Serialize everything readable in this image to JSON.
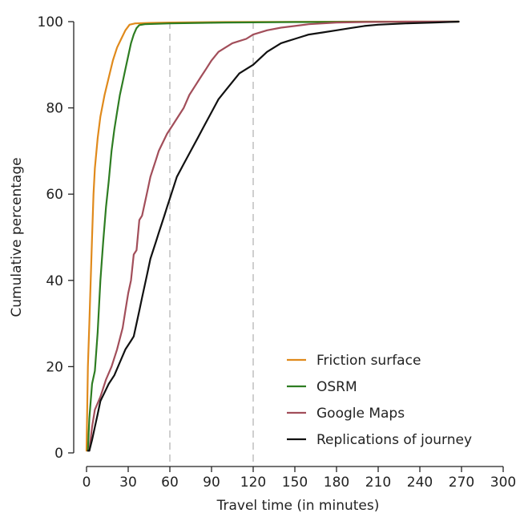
{
  "chart_data": {
    "type": "line",
    "xlabel": "Travel time (in minutes)",
    "ylabel": "Cumulative percentage",
    "xlim": [
      0,
      300
    ],
    "ylim": [
      0,
      100
    ],
    "xticks": [
      0,
      30,
      60,
      90,
      120,
      150,
      180,
      210,
      240,
      270,
      300
    ],
    "yticks": [
      0,
      20,
      40,
      60,
      80,
      100
    ],
    "reference_lines_x": [
      60,
      120
    ],
    "grid": false,
    "legend_position": "bottom-right",
    "series": [
      {
        "name": "Friction surface",
        "color": "#E08A1C",
        "points": [
          [
            0,
            0.5
          ],
          [
            1,
            20
          ],
          [
            2,
            30
          ],
          [
            3,
            40
          ],
          [
            4,
            50
          ],
          [
            5,
            60
          ],
          [
            6,
            66
          ],
          [
            8,
            73
          ],
          [
            10,
            78
          ],
          [
            13,
            83
          ],
          [
            16,
            87
          ],
          [
            19,
            91
          ],
          [
            22,
            94
          ],
          [
            25,
            96
          ],
          [
            28,
            98
          ],
          [
            31,
            99.3
          ],
          [
            35,
            99.6
          ],
          [
            45,
            99.7
          ],
          [
            60,
            99.8
          ],
          [
            100,
            99.9
          ],
          [
            200,
            100
          ],
          [
            268,
            100
          ]
        ]
      },
      {
        "name": "OSRM",
        "color": "#2E7D22",
        "points": [
          [
            1,
            0.5
          ],
          [
            2,
            8
          ],
          [
            4,
            16
          ],
          [
            6,
            19
          ],
          [
            8,
            28
          ],
          [
            10,
            40
          ],
          [
            12,
            49
          ],
          [
            14,
            57
          ],
          [
            16,
            63
          ],
          [
            18,
            70
          ],
          [
            20,
            75
          ],
          [
            22,
            79
          ],
          [
            24,
            83
          ],
          [
            26,
            86
          ],
          [
            28,
            89
          ],
          [
            30,
            92
          ],
          [
            32,
            95
          ],
          [
            34,
            97
          ],
          [
            36,
            98.5
          ],
          [
            38,
            99.2
          ],
          [
            42,
            99.4
          ],
          [
            60,
            99.6
          ],
          [
            100,
            99.8
          ],
          [
            150,
            99.9
          ],
          [
            268,
            100
          ]
        ]
      },
      {
        "name": "Google Maps",
        "color": "#A24E5A",
        "points": [
          [
            2,
            0.5
          ],
          [
            4,
            6
          ],
          [
            6,
            10
          ],
          [
            10,
            13
          ],
          [
            14,
            17
          ],
          [
            18,
            20
          ],
          [
            22,
            24
          ],
          [
            26,
            29
          ],
          [
            28,
            33
          ],
          [
            30,
            37
          ],
          [
            32,
            40
          ],
          [
            34,
            46
          ],
          [
            36,
            47
          ],
          [
            38,
            54
          ],
          [
            40,
            55
          ],
          [
            42,
            58
          ],
          [
            44,
            61
          ],
          [
            46,
            64
          ],
          [
            48,
            66
          ],
          [
            50,
            68
          ],
          [
            52,
            70
          ],
          [
            55,
            72
          ],
          [
            58,
            74
          ],
          [
            62,
            76
          ],
          [
            66,
            78
          ],
          [
            70,
            80
          ],
          [
            74,
            83
          ],
          [
            78,
            85
          ],
          [
            82,
            87
          ],
          [
            86,
            89
          ],
          [
            90,
            91
          ],
          [
            95,
            93
          ],
          [
            100,
            94
          ],
          [
            105,
            95
          ],
          [
            110,
            95.5
          ],
          [
            115,
            96
          ],
          [
            120,
            97
          ],
          [
            130,
            98
          ],
          [
            140,
            98.6
          ],
          [
            150,
            99
          ],
          [
            160,
            99.4
          ],
          [
            170,
            99.6
          ],
          [
            180,
            99.8
          ],
          [
            200,
            99.9
          ],
          [
            230,
            100
          ],
          [
            268,
            100
          ]
        ]
      },
      {
        "name": "Replications of journey",
        "color": "#111111",
        "points": [
          [
            1,
            0.5
          ],
          [
            2,
            0.5
          ],
          [
            4,
            3
          ],
          [
            6,
            6
          ],
          [
            8,
            9
          ],
          [
            10,
            12
          ],
          [
            13,
            14
          ],
          [
            16,
            16
          ],
          [
            20,
            18
          ],
          [
            24,
            21
          ],
          [
            28,
            24
          ],
          [
            32,
            26
          ],
          [
            34,
            27
          ],
          [
            36,
            30
          ],
          [
            38,
            33
          ],
          [
            40,
            36
          ],
          [
            42,
            39
          ],
          [
            44,
            42
          ],
          [
            46,
            45
          ],
          [
            48,
            47
          ],
          [
            50,
            49
          ],
          [
            52,
            51
          ],
          [
            54,
            53
          ],
          [
            56,
            55
          ],
          [
            58,
            57
          ],
          [
            60,
            59
          ],
          [
            62,
            61
          ],
          [
            65,
            64
          ],
          [
            70,
            67
          ],
          [
            75,
            70
          ],
          [
            80,
            73
          ],
          [
            85,
            76
          ],
          [
            90,
            79
          ],
          [
            95,
            82
          ],
          [
            100,
            84
          ],
          [
            105,
            86
          ],
          [
            110,
            88
          ],
          [
            115,
            89
          ],
          [
            120,
            90
          ],
          [
            125,
            91.5
          ],
          [
            130,
            93
          ],
          [
            135,
            94
          ],
          [
            140,
            95
          ],
          [
            145,
            95.5
          ],
          [
            150,
            96
          ],
          [
            160,
            97
          ],
          [
            170,
            97.5
          ],
          [
            180,
            98
          ],
          [
            190,
            98.5
          ],
          [
            200,
            99
          ],
          [
            210,
            99.3
          ],
          [
            230,
            99.6
          ],
          [
            250,
            99.8
          ],
          [
            268,
            100
          ]
        ]
      }
    ]
  }
}
